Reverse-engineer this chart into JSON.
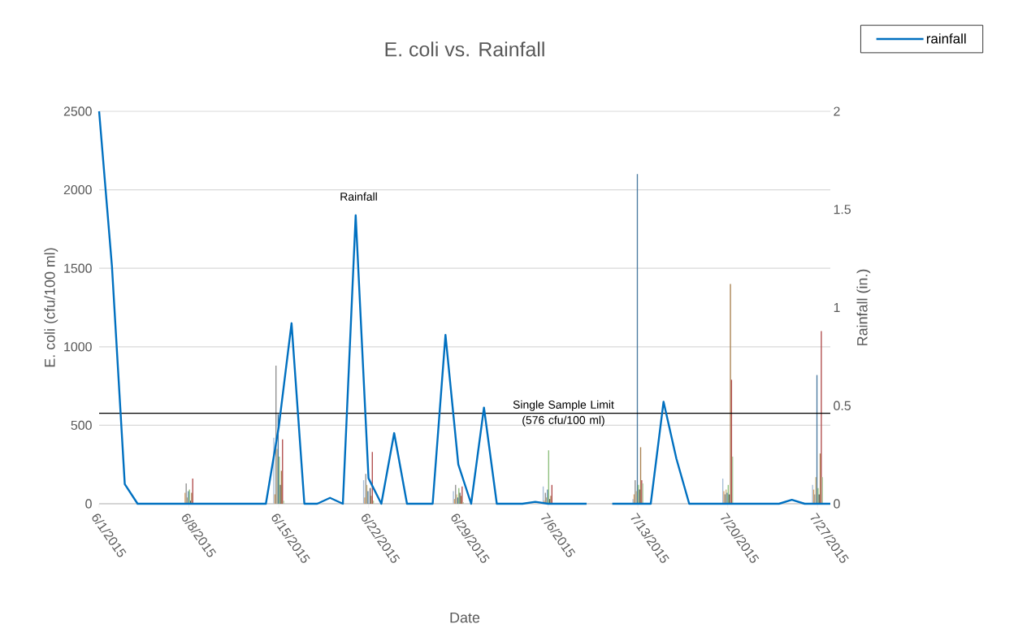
{
  "chart_data": {
    "type": "bar",
    "title": "E. coli vs. Rainfall",
    "xlabel": "Date",
    "ylabel": "E. coli (cfu/100 ml)",
    "y2label": "Rainfall (in.)",
    "annotations": [
      "Rainfall"
    ],
    "xlim": [
      "2015-06-01",
      "2015-07-28"
    ],
    "xticks": [
      {
        "value": "2015-06-01",
        "label": "6/1/2015"
      },
      {
        "value": "2015-06-08",
        "label": "6/8/2015"
      },
      {
        "value": "2015-06-15",
        "label": "6/15/2015"
      },
      {
        "value": "2015-06-22",
        "label": "6/22/2015"
      },
      {
        "value": "2015-06-29",
        "label": "6/29/2015"
      },
      {
        "value": "2015-07-06",
        "label": "7/6/2015"
      },
      {
        "value": "2015-07-13",
        "label": "7/13/2015"
      },
      {
        "value": "2015-07-20",
        "label": "7/20/2015"
      },
      {
        "value": "2015-07-27",
        "label": "7/27/2015"
      }
    ],
    "ylim": [
      0,
      2500
    ],
    "yticks": [
      0,
      500,
      1000,
      1500,
      2000,
      2500
    ],
    "y2lim": [
      0,
      2
    ],
    "y2ticks": [
      0,
      0.5,
      1,
      1.5,
      2
    ],
    "grid": "y",
    "legend": "top right",
    "ref_lines": [
      {
        "axis": "y",
        "value": 576,
        "label": "Single Sample Limit (576 cfu/100 ml)",
        "color": "#000000"
      }
    ],
    "series": [
      {
        "color": "#a5bcd6",
        "x": [
          "2015-06-15",
          "2015-06-22",
          "2015-06-29",
          "2015-07-06",
          "2015-07-13",
          "2015-07-20",
          "2015-07-27"
        ],
        "values": [
          420,
          150,
          80,
          110,
          30,
          160,
          120
        ]
      },
      {
        "color": "#d9a066",
        "x": [
          "2015-06-08",
          "2015-06-15",
          "2015-06-22",
          "2015-06-29",
          "2015-07-06",
          "2015-07-13",
          "2015-07-20",
          "2015-07-27"
        ],
        "values": [
          70,
          60,
          40,
          30,
          20,
          60,
          80,
          90
        ]
      },
      {
        "color": "#8f8f8f",
        "x": [
          "2015-06-08",
          "2015-06-15",
          "2015-06-22",
          "2015-06-29",
          "2015-07-06",
          "2015-07-13",
          "2015-07-20",
          "2015-07-27"
        ],
        "values": [
          130,
          880,
          190,
          120,
          70,
          150,
          60,
          60
        ]
      },
      {
        "color": "#c9b27c",
        "x": [
          "2015-06-08",
          "2015-06-15",
          "2015-06-22",
          "2015-06-29",
          "2015-07-06",
          "2015-07-13",
          "2015-07-20",
          "2015-07-27"
        ],
        "values": [
          40,
          350,
          120,
          60,
          40,
          80,
          90,
          170
        ]
      },
      {
        "color": "#4a7aa0",
        "x": [
          "2015-06-08",
          "2015-06-15",
          "2015-06-22",
          "2015-06-29",
          "2015-07-06",
          "2015-07-13",
          "2015-07-20",
          "2015-07-27"
        ],
        "values": [
          80,
          570,
          80,
          40,
          90,
          2100,
          70,
          820
        ]
      },
      {
        "color": "#8cbf7a",
        "x": [
          "2015-06-08",
          "2015-06-15",
          "2015-06-22",
          "2015-06-29",
          "2015-07-06",
          "2015-07-13",
          "2015-07-20",
          "2015-07-27"
        ],
        "values": [
          90,
          300,
          null,
          100,
          340,
          120,
          120,
          100
        ]
      },
      {
        "color": "#5a5a5a",
        "x": [
          "2015-06-08",
          "2015-06-15",
          "2015-06-22",
          "2015-06-29",
          "2015-07-06",
          "2015-07-13",
          "2015-07-20",
          "2015-07-27"
        ],
        "values": [
          20,
          120,
          100,
          70,
          30,
          90,
          60,
          60
        ]
      },
      {
        "color": "#a8804f",
        "x": [
          "2015-06-08",
          "2015-06-15",
          "2015-06-22",
          "2015-06-29",
          "2015-07-06",
          "2015-07-13",
          "2015-07-20",
          "2015-07-27"
        ],
        "values": [
          70,
          210,
          50,
          50,
          50,
          360,
          1400,
          320
        ]
      },
      {
        "color": "#b04b4b",
        "x": [
          "2015-06-08",
          "2015-06-15",
          "2015-06-22",
          "2015-06-29",
          "2015-07-06",
          "2015-07-13",
          "2015-07-20",
          "2015-07-27"
        ],
        "values": [
          160,
          410,
          330,
          110,
          120,
          150,
          790,
          1100
        ]
      },
      {
        "color": "#a8c99b",
        "x": [
          "2015-06-15",
          "2015-06-22",
          "2015-06-29",
          "2015-07-06",
          "2015-07-13",
          "2015-07-20",
          "2015-07-27"
        ],
        "values": [
          20,
          20,
          10,
          null,
          130,
          300,
          170
        ]
      },
      {
        "type": "line",
        "name": "rainfall",
        "axis": "y2",
        "color": "#0070c0",
        "x": [
          "2015-06-01",
          "2015-06-02",
          "2015-06-03",
          "2015-06-04",
          "2015-06-05",
          "2015-06-06",
          "2015-06-07",
          "2015-06-08",
          "2015-06-09",
          "2015-06-10",
          "2015-06-11",
          "2015-06-12",
          "2015-06-13",
          "2015-06-14",
          "2015-06-15",
          "2015-06-16",
          "2015-06-17",
          "2015-06-18",
          "2015-06-19",
          "2015-06-20",
          "2015-06-21",
          "2015-06-22",
          "2015-06-23",
          "2015-06-24",
          "2015-06-25",
          "2015-06-26",
          "2015-06-27",
          "2015-06-28",
          "2015-06-29",
          "2015-06-30",
          "2015-07-01",
          "2015-07-02",
          "2015-07-03",
          "2015-07-04",
          "2015-07-05",
          "2015-07-06",
          "2015-07-07",
          "2015-07-08",
          "2015-07-09",
          "2015-07-10",
          "2015-07-11",
          "2015-07-12",
          "2015-07-13",
          "2015-07-14",
          "2015-07-15",
          "2015-07-16",
          "2015-07-17",
          "2015-07-18",
          "2015-07-19",
          "2015-07-20",
          "2015-07-21",
          "2015-07-22",
          "2015-07-23",
          "2015-07-24",
          "2015-07-25",
          "2015-07-26",
          "2015-07-27",
          "2015-07-28"
        ],
        "values": [
          2.0,
          1.21,
          0.1,
          0,
          0,
          0,
          0,
          0,
          0,
          0,
          0,
          0,
          0,
          0,
          0.39,
          0.92,
          0,
          0,
          0.03,
          0,
          1.47,
          0.13,
          0,
          0.36,
          0,
          0,
          0,
          0.86,
          0.2,
          0,
          0.49,
          0,
          0,
          0,
          0.01,
          0,
          0,
          0,
          0,
          null,
          0,
          0,
          0,
          0,
          0.52,
          0.23,
          0,
          0,
          0,
          0,
          0,
          0,
          0,
          0,
          0.02,
          0,
          0,
          0
        ]
      }
    ]
  }
}
